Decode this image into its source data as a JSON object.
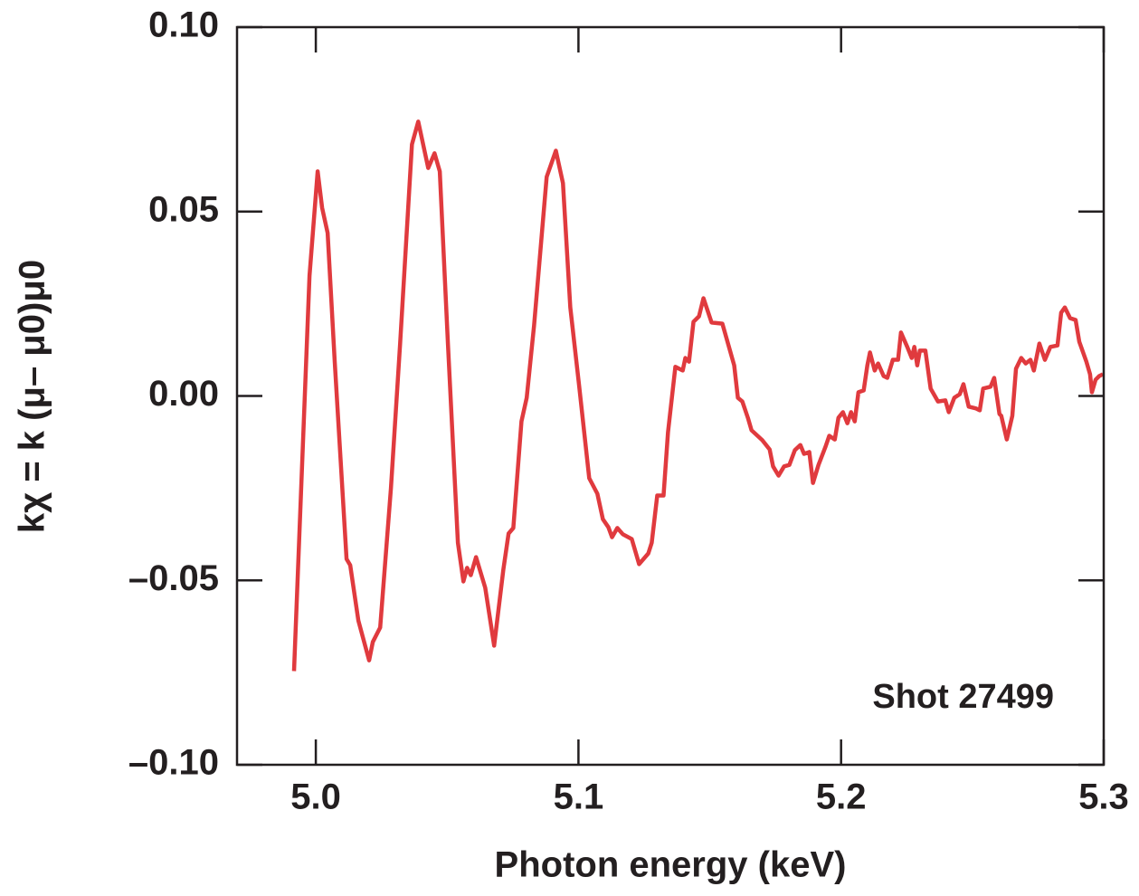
{
  "chart_data": {
    "type": "line",
    "xlabel": "Photon energy (keV)",
    "ylabel": "kχ = k (μ– μ0)μ0",
    "annotation": "Shot 27499",
    "color": "#e03a3e",
    "xlim": [
      4.97,
      5.3
    ],
    "ylim": [
      -0.1,
      0.1
    ],
    "xticks": [
      {
        "value": 5,
        "label": "5.0"
      },
      5.1,
      5.2,
      5.3
    ],
    "yticks": [
      {
        "value": -0.1,
        "label": "–0.10"
      },
      {
        "value": -0.05,
        "label": "–0.05"
      },
      {
        "value": 0,
        "label": "0.00"
      },
      {
        "value": 0.05,
        "label": "0.05"
      },
      {
        "value": 0.1,
        "label": "0.10"
      }
    ],
    "x": [
      4.9917,
      4.9976,
      5.0007,
      5.0024,
      5.0045,
      5.0072,
      5.0117,
      5.0131,
      5.0162,
      5.0203,
      5.0217,
      5.0245,
      5.0286,
      5.0321,
      5.0366,
      5.039,
      5.0428,
      5.0452,
      5.0472,
      5.0503,
      5.0541,
      5.0562,
      5.0576,
      5.059,
      5.061,
      5.0645,
      5.0679,
      5.0714,
      5.0734,
      5.0752,
      5.0783,
      5.0803,
      5.0831,
      5.0879,
      5.0914,
      5.0941,
      5.0969,
      5.1003,
      5.1041,
      5.1072,
      5.1093,
      5.1114,
      5.1128,
      5.1148,
      5.1169,
      5.1203,
      5.1231,
      5.1266,
      5.1279,
      5.13,
      5.1324,
      5.1341,
      5.1369,
      5.1397,
      5.1407,
      5.1421,
      5.1438,
      5.1459,
      5.1476,
      5.1507,
      5.1548,
      5.1593,
      5.1607,
      5.1624,
      5.1645,
      5.1659,
      5.17,
      5.1728,
      5.1741,
      5.1762,
      5.1783,
      5.1803,
      5.1824,
      5.1845,
      5.1859,
      5.1879,
      5.1893,
      5.1914,
      5.1941,
      5.1955,
      5.1976,
      5.199,
      5.2007,
      5.2024,
      5.2038,
      5.2052,
      5.2066,
      5.2086,
      5.21,
      5.211,
      5.2128,
      5.2141,
      5.2162,
      5.2176,
      5.2197,
      5.2217,
      5.2228,
      5.2252,
      5.2269,
      5.2279,
      5.229,
      5.23,
      5.2321,
      5.2341,
      5.2369,
      5.2397,
      5.241,
      5.2431,
      5.2452,
      5.2466,
      5.2486,
      5.2514,
      5.2528,
      5.2541,
      5.2569,
      5.2583,
      5.2603,
      5.261,
      5.2631,
      5.2652,
      5.2666,
      5.2686,
      5.2703,
      5.2721,
      5.2734,
      5.2755,
      5.2776,
      5.2797,
      5.2824,
      5.2838,
      5.2852,
      5.2872,
      5.2893,
      5.2907,
      5.2934,
      5.2948,
      5.2955,
      5.2969,
      5.2983,
      5.2997
    ],
    "values": [
      -0.0746,
      0.0326,
      0.0609,
      0.051,
      0.0442,
      0.0093,
      -0.0442,
      -0.0459,
      -0.0609,
      -0.0717,
      -0.0667,
      -0.0628,
      -0.025,
      0.0142,
      0.0682,
      0.0744,
      0.0618,
      0.0658,
      0.0609,
      0.0142,
      -0.0398,
      -0.0503,
      -0.0466,
      -0.0486,
      -0.0437,
      -0.052,
      -0.0677,
      -0.0471,
      -0.0373,
      -0.0358,
      -0.0069,
      -0.0005,
      0.0191,
      0.0594,
      0.0665,
      0.0577,
      0.024,
      0.0025,
      -0.0223,
      -0.0265,
      -0.0334,
      -0.0356,
      -0.0383,
      -0.0358,
      -0.0375,
      -0.0388,
      -0.0456,
      -0.0427,
      -0.0398,
      -0.027,
      -0.027,
      -0.0098,
      0.0079,
      0.0069,
      0.0103,
      0.0093,
      0.0201,
      0.0216,
      0.0265,
      0.0199,
      0.0196,
      0.0083,
      -0.0005,
      -0.0015,
      -0.0059,
      -0.0093,
      -0.012,
      -0.0145,
      -0.0191,
      -0.0216,
      -0.0191,
      -0.0187,
      -0.0147,
      -0.0133,
      -0.0157,
      -0.0152,
      -0.0236,
      -0.0187,
      -0.0137,
      -0.0108,
      -0.0118,
      -0.0059,
      -0.0044,
      -0.0074,
      -0.0044,
      -0.0069,
      0.001,
      0.0015,
      0.0083,
      0.0118,
      0.0069,
      0.0088,
      0.0054,
      0.0049,
      0.0098,
      0.0098,
      0.0172,
      0.0133,
      0.0103,
      0.0133,
      0.0083,
      0.0123,
      0.0123,
      0.002,
      -0.0015,
      -0.0012,
      -0.0044,
      -0.0005,
      0.0005,
      0.0032,
      -0.0029,
      -0.0034,
      -0.0039,
      0.002,
      0.0025,
      0.0049,
      -0.0049,
      -0.0054,
      -0.0118,
      -0.0054,
      0.0074,
      0.0103,
      0.0088,
      0.0098,
      0.0069,
      0.0142,
      0.0098,
      0.0133,
      0.0137,
      0.0226,
      0.024,
      0.0211,
      0.0206,
      0.0147,
      0.0093,
      0.0059,
      0.001,
      0.0044,
      0.0054,
      0.0059
    ]
  }
}
